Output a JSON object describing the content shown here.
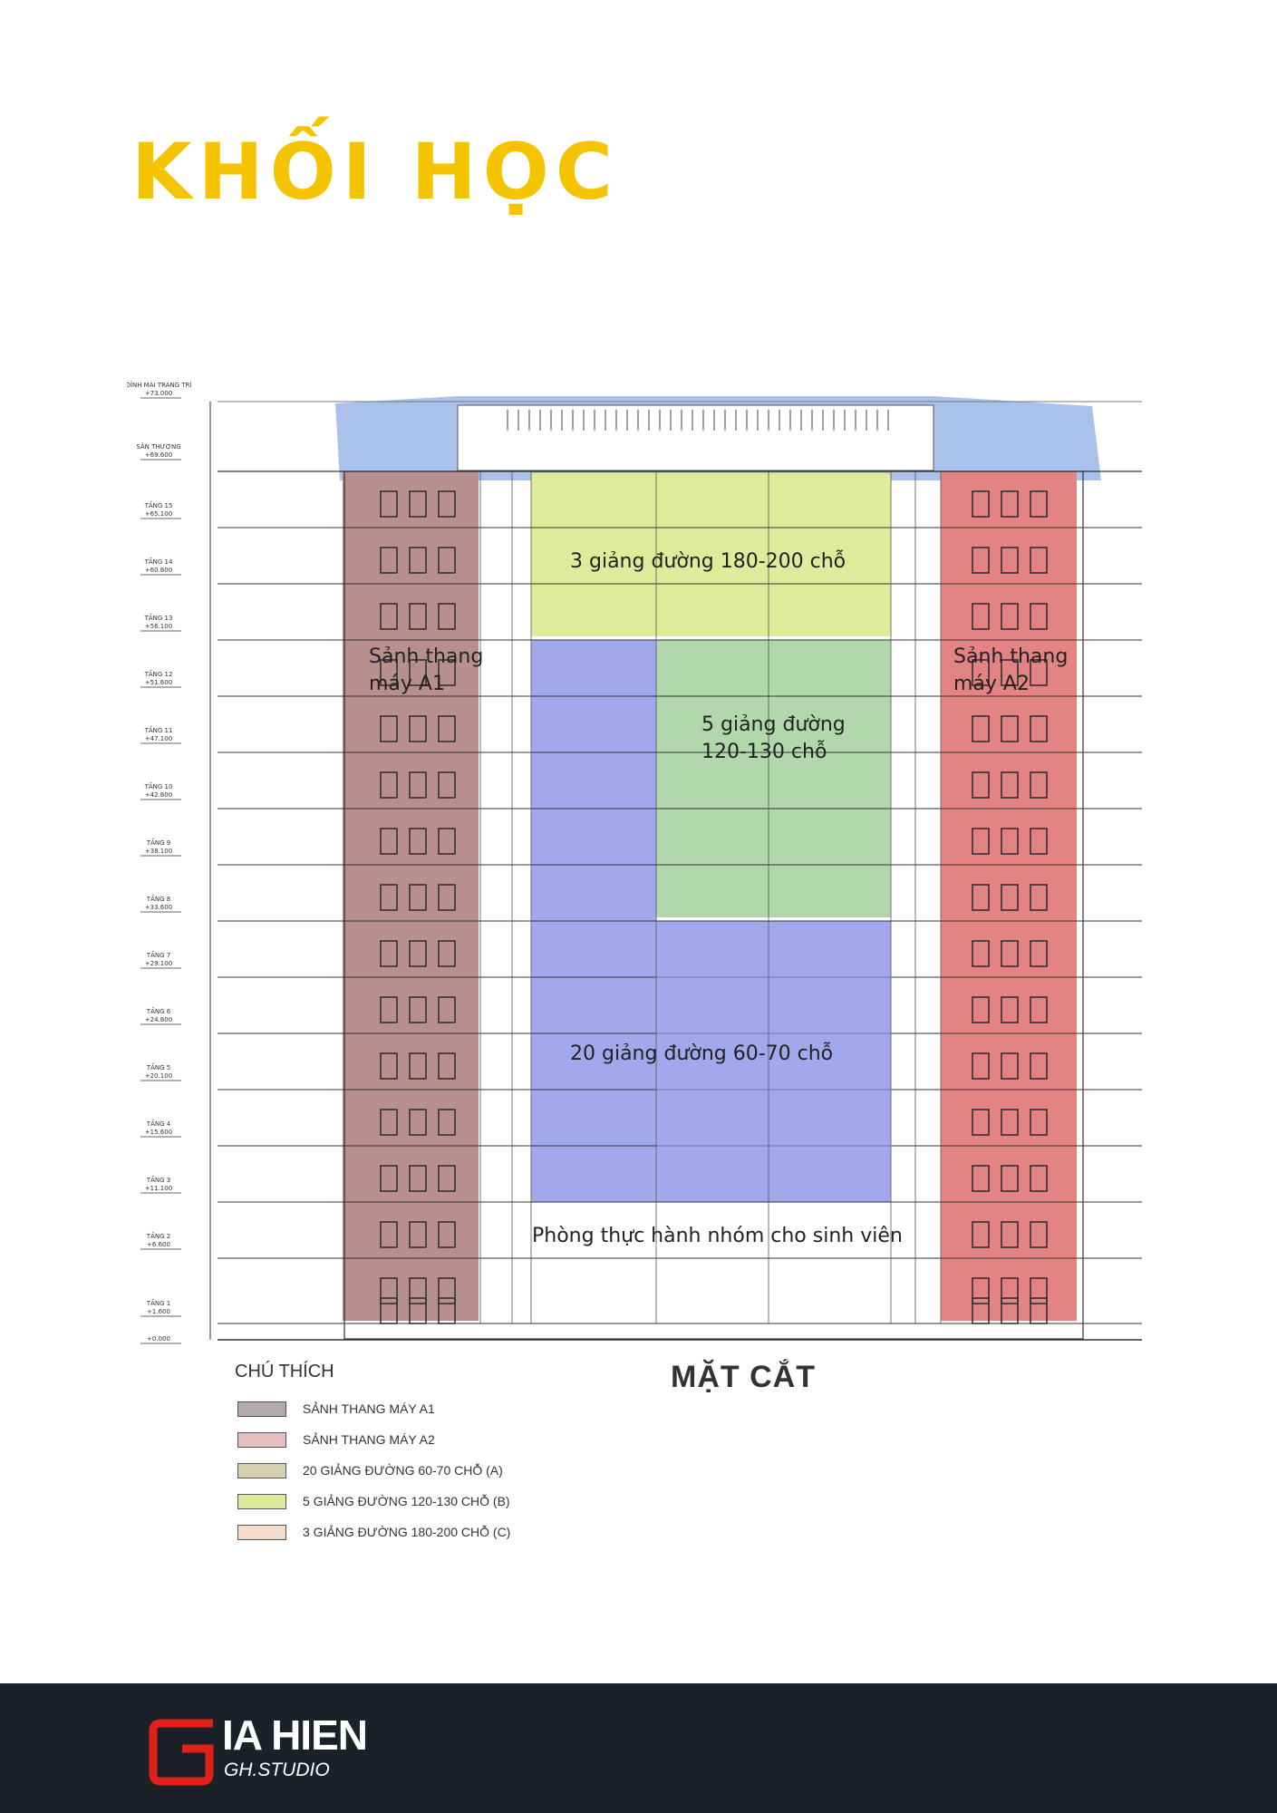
{
  "page": {
    "title": "KHỐI HỌC"
  },
  "drawing": {
    "caption": "MẶT CẮT",
    "zones": {
      "lobby_a1": "Sảnh thang\nmáy A1",
      "lobby_a2": "Sảnh thang\nmáy A2",
      "halls_180": "3 giảng đường 180-200 chỗ",
      "halls_120": "5 giảng đường\n120-130 chỗ",
      "halls_60": "20 giảng đường 60-70 chỗ",
      "practice": "Phòng thực hành nhóm cho sinh viên"
    },
    "levels": [
      {
        "name": "ĐỈNH MÁI TRANG TRÍ",
        "elev": "+73.000"
      },
      {
        "name": "SÂN THƯỢNG",
        "elev": "+69.600"
      },
      {
        "name": "TẦNG 15",
        "elev": "+65.100"
      },
      {
        "name": "TẦNG 14",
        "elev": "+60.600"
      },
      {
        "name": "TẦNG 13",
        "elev": "+56.100"
      },
      {
        "name": "TẦNG 12",
        "elev": "+51.600"
      },
      {
        "name": "TẦNG 11",
        "elev": "+47.100"
      },
      {
        "name": "TẦNG 10",
        "elev": "+42.600"
      },
      {
        "name": "TẦNG 9",
        "elev": "+38.100"
      },
      {
        "name": "TẦNG 8",
        "elev": "+33.600"
      },
      {
        "name": "TẦNG 7",
        "elev": "+29.100"
      },
      {
        "name": "TẦNG 6",
        "elev": "+24.600"
      },
      {
        "name": "TẦNG 5",
        "elev": "+20.100"
      },
      {
        "name": "TẦNG 4",
        "elev": "+15.600"
      },
      {
        "name": "TẦNG 3",
        "elev": "+11.100"
      },
      {
        "name": "TẦNG 2",
        "elev": "+6.600"
      },
      {
        "name": "TẦNG 1",
        "elev": "+1.600"
      },
      {
        "name": "",
        "elev": "+0.000"
      }
    ]
  },
  "legend": {
    "title": "CHÚ THÍCH",
    "items": [
      {
        "label": "SẢNH THANG MÁY A1",
        "color": "#b3a9ac"
      },
      {
        "label": "SẢNH THANG MÁY A2",
        "color": "#e6bfc0"
      },
      {
        "label": "20 GIẢNG ĐƯỜNG 60-70 CHỖ (A)",
        "color": "#d6cfb0"
      },
      {
        "label": "5 GIẢNG ĐƯỜNG 120-130 CHỖ (B)",
        "color": "#dfe99a"
      },
      {
        "label": "3 GIẢNG ĐƯỜNG 180-200 CHỖ (C)",
        "color": "#f2dccc"
      }
    ]
  },
  "colors": {
    "title": "#f5c400",
    "lobby_a1": "#b88f8f",
    "lobby_a2": "#e48383",
    "halls_180": "#dfeb9a",
    "halls_120": "#b2d7ad",
    "halls_60": "#a1a9ec",
    "roof": "#9bb6e8",
    "footer": "#1c2029",
    "logo_red": "#e1221c"
  },
  "footer": {
    "brand_name": "IA HIEN",
    "brand_sub": "GH.STUDIO"
  }
}
